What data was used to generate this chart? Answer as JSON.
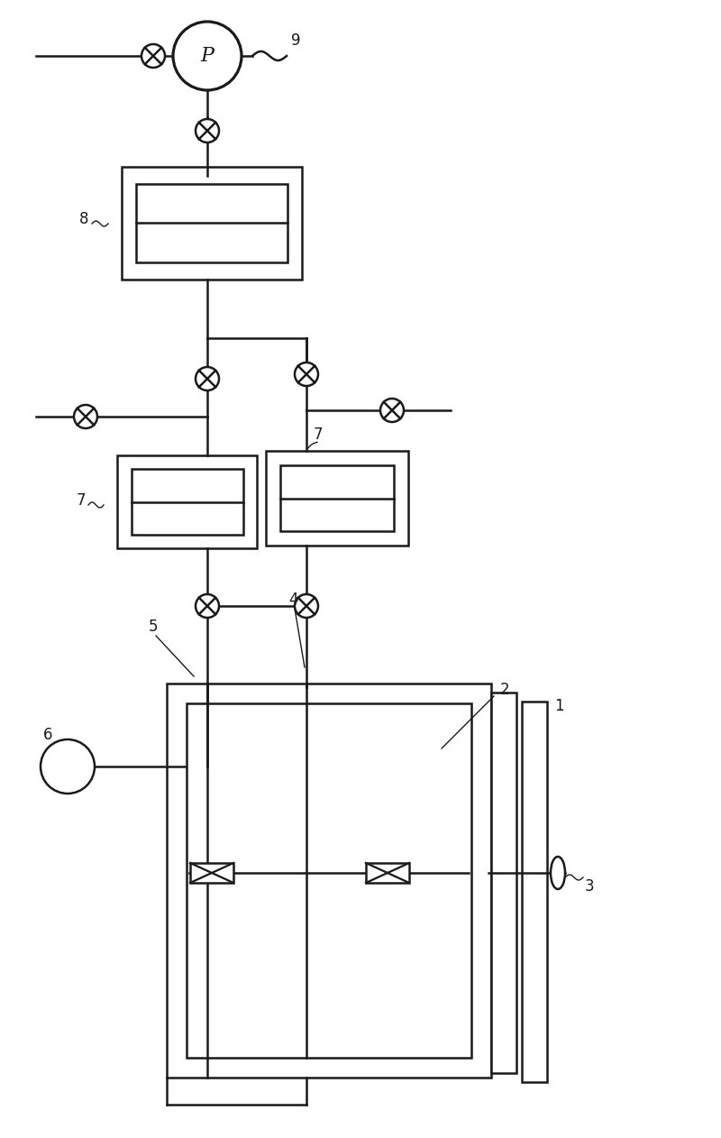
{
  "bg_color": "#ffffff",
  "line_color": "#1a1a1a",
  "label_color": "#1a1a1a",
  "fig_width": 8.0,
  "fig_height": 12.62
}
